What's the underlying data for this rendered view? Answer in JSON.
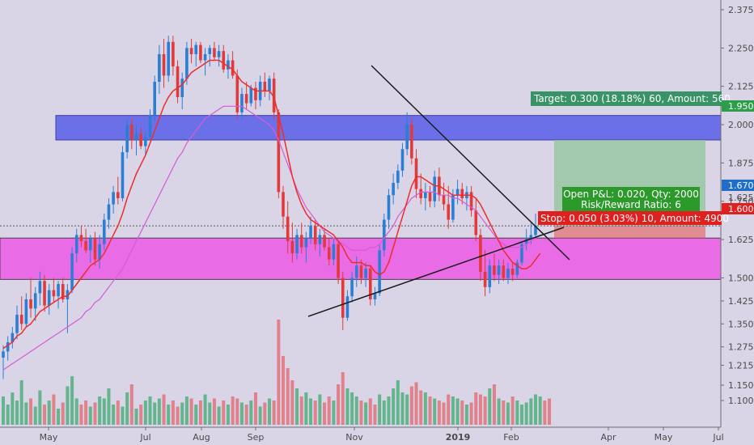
{
  "chart_data": {
    "type": "candlestick",
    "title": "",
    "y_axis_ticks": [
      "2.375",
      "2.250",
      "2.125",
      "2.000",
      "1.875",
      "1.750",
      "1.625",
      "1.500",
      "1.425",
      "1.350",
      "1.275",
      "1.215",
      "1.150",
      "1.100"
    ],
    "x_axis_labels": [
      "May",
      "Jul",
      "Aug",
      "Sep",
      "Nov",
      "2019",
      "Feb",
      "Apr",
      "May",
      "Jul"
    ],
    "last_price": "1.670",
    "target_price": "1.950",
    "stop_price": "1.600",
    "candles": [
      {
        "o": 1.24,
        "h": 1.28,
        "l": 1.17,
        "c": 1.26
      },
      {
        "o": 1.26,
        "h": 1.31,
        "l": 1.23,
        "c": 1.29
      },
      {
        "o": 1.29,
        "h": 1.34,
        "l": 1.27,
        "c": 1.32
      },
      {
        "o": 1.32,
        "h": 1.41,
        "l": 1.3,
        "c": 1.38
      },
      {
        "o": 1.38,
        "h": 1.44,
        "l": 1.33,
        "c": 1.35
      },
      {
        "o": 1.35,
        "h": 1.45,
        "l": 1.34,
        "c": 1.43
      },
      {
        "o": 1.43,
        "h": 1.5,
        "l": 1.37,
        "c": 1.4
      },
      {
        "o": 1.4,
        "h": 1.47,
        "l": 1.36,
        "c": 1.45
      },
      {
        "o": 1.45,
        "h": 1.52,
        "l": 1.41,
        "c": 1.49
      },
      {
        "o": 1.49,
        "h": 1.51,
        "l": 1.39,
        "c": 1.41
      },
      {
        "o": 1.41,
        "h": 1.48,
        "l": 1.38,
        "c": 1.46
      },
      {
        "o": 1.46,
        "h": 1.5,
        "l": 1.42,
        "c": 1.44
      },
      {
        "o": 1.44,
        "h": 1.49,
        "l": 1.4,
        "c": 1.48
      },
      {
        "o": 1.48,
        "h": 1.5,
        "l": 1.42,
        "c": 1.43
      },
      {
        "o": 1.43,
        "h": 1.48,
        "l": 1.32,
        "c": 1.46
      },
      {
        "o": 1.46,
        "h": 1.6,
        "l": 1.45,
        "c": 1.58
      },
      {
        "o": 1.58,
        "h": 1.66,
        "l": 1.55,
        "c": 1.64
      },
      {
        "o": 1.64,
        "h": 1.67,
        "l": 1.6,
        "c": 1.62
      },
      {
        "o": 1.62,
        "h": 1.66,
        "l": 1.58,
        "c": 1.59
      },
      {
        "o": 1.59,
        "h": 1.64,
        "l": 1.55,
        "c": 1.63
      },
      {
        "o": 1.63,
        "h": 1.65,
        "l": 1.54,
        "c": 1.56
      },
      {
        "o": 1.56,
        "h": 1.64,
        "l": 1.53,
        "c": 1.61
      },
      {
        "o": 1.61,
        "h": 1.71,
        "l": 1.59,
        "c": 1.69
      },
      {
        "o": 1.69,
        "h": 1.76,
        "l": 1.66,
        "c": 1.74
      },
      {
        "o": 1.74,
        "h": 1.8,
        "l": 1.71,
        "c": 1.78
      },
      {
        "o": 1.78,
        "h": 1.83,
        "l": 1.74,
        "c": 1.76
      },
      {
        "o": 1.76,
        "h": 1.93,
        "l": 1.75,
        "c": 1.91
      },
      {
        "o": 1.91,
        "h": 2.02,
        "l": 1.89,
        "c": 2.0
      },
      {
        "o": 2.0,
        "h": 2.02,
        "l": 1.92,
        "c": 1.95
      },
      {
        "o": 1.95,
        "h": 2.0,
        "l": 1.9,
        "c": 1.97
      },
      {
        "o": 1.97,
        "h": 1.99,
        "l": 1.92,
        "c": 1.93
      },
      {
        "o": 1.93,
        "h": 1.98,
        "l": 1.9,
        "c": 1.96
      },
      {
        "o": 1.96,
        "h": 2.05,
        "l": 1.95,
        "c": 2.03
      },
      {
        "o": 2.03,
        "h": 2.16,
        "l": 2.01,
        "c": 2.14
      },
      {
        "o": 2.14,
        "h": 2.26,
        "l": 2.1,
        "c": 2.23
      },
      {
        "o": 2.23,
        "h": 2.28,
        "l": 2.12,
        "c": 2.16
      },
      {
        "o": 2.16,
        "h": 2.29,
        "l": 2.14,
        "c": 2.27
      },
      {
        "o": 2.27,
        "h": 2.29,
        "l": 2.16,
        "c": 2.19
      },
      {
        "o": 2.19,
        "h": 2.21,
        "l": 2.07,
        "c": 2.09
      },
      {
        "o": 2.09,
        "h": 2.17,
        "l": 2.05,
        "c": 2.15
      },
      {
        "o": 2.15,
        "h": 2.27,
        "l": 2.13,
        "c": 2.25
      },
      {
        "o": 2.25,
        "h": 2.28,
        "l": 2.2,
        "c": 2.23
      },
      {
        "o": 2.23,
        "h": 2.27,
        "l": 2.19,
        "c": 2.26
      },
      {
        "o": 2.26,
        "h": 2.27,
        "l": 2.2,
        "c": 2.21
      },
      {
        "o": 2.21,
        "h": 2.25,
        "l": 2.16,
        "c": 2.23
      },
      {
        "o": 2.23,
        "h": 2.26,
        "l": 2.19,
        "c": 2.25
      },
      {
        "o": 2.25,
        "h": 2.27,
        "l": 2.21,
        "c": 2.22
      },
      {
        "o": 2.22,
        "h": 2.26,
        "l": 2.19,
        "c": 2.24
      },
      {
        "o": 2.24,
        "h": 2.26,
        "l": 2.17,
        "c": 2.18
      },
      {
        "o": 2.18,
        "h": 2.23,
        "l": 2.15,
        "c": 2.21
      },
      {
        "o": 2.21,
        "h": 2.24,
        "l": 2.15,
        "c": 2.16
      },
      {
        "o": 2.16,
        "h": 2.18,
        "l": 2.02,
        "c": 2.04
      },
      {
        "o": 2.04,
        "h": 2.12,
        "l": 2.02,
        "c": 2.1
      },
      {
        "o": 2.1,
        "h": 2.14,
        "l": 2.05,
        "c": 2.07
      },
      {
        "o": 2.07,
        "h": 2.13,
        "l": 2.06,
        "c": 2.12
      },
      {
        "o": 2.12,
        "h": 2.14,
        "l": 2.05,
        "c": 2.08
      },
      {
        "o": 2.08,
        "h": 2.16,
        "l": 2.06,
        "c": 2.14
      },
      {
        "o": 2.14,
        "h": 2.17,
        "l": 2.09,
        "c": 2.11
      },
      {
        "o": 2.11,
        "h": 2.16,
        "l": 2.08,
        "c": 2.15
      },
      {
        "o": 2.15,
        "h": 2.17,
        "l": 2.02,
        "c": 2.04
      },
      {
        "o": 2.04,
        "h": 2.05,
        "l": 1.76,
        "c": 1.78
      },
      {
        "o": 1.78,
        "h": 1.8,
        "l": 1.66,
        "c": 1.7
      },
      {
        "o": 1.7,
        "h": 1.75,
        "l": 1.58,
        "c": 1.62
      },
      {
        "o": 1.62,
        "h": 1.68,
        "l": 1.55,
        "c": 1.58
      },
      {
        "o": 1.58,
        "h": 1.66,
        "l": 1.56,
        "c": 1.64
      },
      {
        "o": 1.64,
        "h": 1.68,
        "l": 1.58,
        "c": 1.6
      },
      {
        "o": 1.6,
        "h": 1.65,
        "l": 1.55,
        "c": 1.63
      },
      {
        "o": 1.63,
        "h": 1.7,
        "l": 1.61,
        "c": 1.67
      },
      {
        "o": 1.67,
        "h": 1.69,
        "l": 1.59,
        "c": 1.61
      },
      {
        "o": 1.61,
        "h": 1.66,
        "l": 1.57,
        "c": 1.64
      },
      {
        "o": 1.64,
        "h": 1.66,
        "l": 1.59,
        "c": 1.6
      },
      {
        "o": 1.6,
        "h": 1.63,
        "l": 1.54,
        "c": 1.56
      },
      {
        "o": 1.56,
        "h": 1.63,
        "l": 1.54,
        "c": 1.61
      },
      {
        "o": 1.61,
        "h": 1.62,
        "l": 1.48,
        "c": 1.5
      },
      {
        "o": 1.5,
        "h": 1.52,
        "l": 1.33,
        "c": 1.37
      },
      {
        "o": 1.37,
        "h": 1.46,
        "l": 1.36,
        "c": 1.44
      },
      {
        "o": 1.44,
        "h": 1.52,
        "l": 1.42,
        "c": 1.5
      },
      {
        "o": 1.5,
        "h": 1.57,
        "l": 1.47,
        "c": 1.54
      },
      {
        "o": 1.54,
        "h": 1.56,
        "l": 1.48,
        "c": 1.5
      },
      {
        "o": 1.5,
        "h": 1.55,
        "l": 1.47,
        "c": 1.53
      },
      {
        "o": 1.53,
        "h": 1.54,
        "l": 1.41,
        "c": 1.43
      },
      {
        "o": 1.43,
        "h": 1.47,
        "l": 1.41,
        "c": 1.45
      },
      {
        "o": 1.45,
        "h": 1.61,
        "l": 1.44,
        "c": 1.59
      },
      {
        "o": 1.59,
        "h": 1.71,
        "l": 1.57,
        "c": 1.69
      },
      {
        "o": 1.69,
        "h": 1.79,
        "l": 1.66,
        "c": 1.77
      },
      {
        "o": 1.77,
        "h": 1.84,
        "l": 1.74,
        "c": 1.81
      },
      {
        "o": 1.81,
        "h": 1.87,
        "l": 1.79,
        "c": 1.85
      },
      {
        "o": 1.85,
        "h": 1.94,
        "l": 1.83,
        "c": 1.92
      },
      {
        "o": 1.92,
        "h": 2.04,
        "l": 1.9,
        "c": 2.0
      },
      {
        "o": 2.0,
        "h": 2.02,
        "l": 1.87,
        "c": 1.89
      },
      {
        "o": 1.89,
        "h": 1.92,
        "l": 1.76,
        "c": 1.79
      },
      {
        "o": 1.79,
        "h": 1.84,
        "l": 1.74,
        "c": 1.76
      },
      {
        "o": 1.76,
        "h": 1.81,
        "l": 1.72,
        "c": 1.78
      },
      {
        "o": 1.78,
        "h": 1.8,
        "l": 1.73,
        "c": 1.75
      },
      {
        "o": 1.75,
        "h": 1.85,
        "l": 1.73,
        "c": 1.83
      },
      {
        "o": 1.83,
        "h": 1.86,
        "l": 1.75,
        "c": 1.77
      },
      {
        "o": 1.77,
        "h": 1.81,
        "l": 1.72,
        "c": 1.74
      },
      {
        "o": 1.74,
        "h": 1.8,
        "l": 1.66,
        "c": 1.69
      },
      {
        "o": 1.69,
        "h": 1.79,
        "l": 1.68,
        "c": 1.77
      },
      {
        "o": 1.77,
        "h": 1.82,
        "l": 1.74,
        "c": 1.79
      },
      {
        "o": 1.79,
        "h": 1.81,
        "l": 1.74,
        "c": 1.76
      },
      {
        "o": 1.76,
        "h": 1.8,
        "l": 1.72,
        "c": 1.78
      },
      {
        "o": 1.78,
        "h": 1.8,
        "l": 1.7,
        "c": 1.72
      },
      {
        "o": 1.72,
        "h": 1.76,
        "l": 1.62,
        "c": 1.64
      },
      {
        "o": 1.64,
        "h": 1.66,
        "l": 1.49,
        "c": 1.52
      },
      {
        "o": 1.52,
        "h": 1.59,
        "l": 1.44,
        "c": 1.47
      },
      {
        "o": 1.47,
        "h": 1.56,
        "l": 1.45,
        "c": 1.54
      },
      {
        "o": 1.54,
        "h": 1.58,
        "l": 1.49,
        "c": 1.51
      },
      {
        "o": 1.51,
        "h": 1.56,
        "l": 1.48,
        "c": 1.54
      },
      {
        "o": 1.54,
        "h": 1.56,
        "l": 1.49,
        "c": 1.5
      },
      {
        "o": 1.5,
        "h": 1.55,
        "l": 1.48,
        "c": 1.53
      },
      {
        "o": 1.53,
        "h": 1.55,
        "l": 1.49,
        "c": 1.51
      },
      {
        "o": 1.51,
        "h": 1.56,
        "l": 1.5,
        "c": 1.55
      },
      {
        "o": 1.55,
        "h": 1.62,
        "l": 1.54,
        "c": 1.61
      },
      {
        "o": 1.61,
        "h": 1.66,
        "l": 1.59,
        "c": 1.63
      },
      {
        "o": 1.63,
        "h": 1.68,
        "l": 1.61,
        "c": 1.64
      },
      {
        "o": 1.64,
        "h": 1.71,
        "l": 1.63,
        "c": 1.67
      }
    ],
    "ma_red": [
      1.27,
      1.28,
      1.29,
      1.31,
      1.32,
      1.34,
      1.35,
      1.37,
      1.39,
      1.4,
      1.41,
      1.42,
      1.43,
      1.44,
      1.44,
      1.46,
      1.48,
      1.5,
      1.52,
      1.54,
      1.55,
      1.56,
      1.58,
      1.61,
      1.64,
      1.67,
      1.71,
      1.76,
      1.8,
      1.84,
      1.87,
      1.9,
      1.94,
      1.98,
      2.02,
      2.06,
      2.09,
      2.11,
      2.12,
      2.13,
      2.15,
      2.17,
      2.18,
      2.19,
      2.2,
      2.21,
      2.21,
      2.21,
      2.2,
      2.19,
      2.18,
      2.16,
      2.14,
      2.13,
      2.12,
      2.11,
      2.11,
      2.11,
      2.11,
      2.09,
      2.03,
      1.97,
      1.9,
      1.83,
      1.78,
      1.74,
      1.71,
      1.69,
      1.68,
      1.67,
      1.66,
      1.65,
      1.64,
      1.62,
      1.6,
      1.57,
      1.55,
      1.55,
      1.55,
      1.54,
      1.54,
      1.52,
      1.51,
      1.52,
      1.55,
      1.6,
      1.65,
      1.7,
      1.75,
      1.8,
      1.83,
      1.83,
      1.82,
      1.81,
      1.8,
      1.8,
      1.79,
      1.78,
      1.77,
      1.77,
      1.77,
      1.77,
      1.77,
      1.76,
      1.74,
      1.71,
      1.68,
      1.65,
      1.62,
      1.59,
      1.57,
      1.55,
      1.54,
      1.53,
      1.53,
      1.54,
      1.56,
      1.58
    ],
    "ma_pink": [
      1.2,
      1.21,
      1.22,
      1.23,
      1.24,
      1.25,
      1.26,
      1.27,
      1.28,
      1.29,
      1.3,
      1.31,
      1.32,
      1.33,
      1.34,
      1.35,
      1.36,
      1.37,
      1.39,
      1.4,
      1.42,
      1.43,
      1.45,
      1.47,
      1.49,
      1.51,
      1.53,
      1.56,
      1.59,
      1.62,
      1.65,
      1.68,
      1.71,
      1.74,
      1.77,
      1.8,
      1.83,
      1.86,
      1.89,
      1.91,
      1.94,
      1.96,
      1.98,
      2.0,
      2.02,
      2.03,
      2.04,
      2.05,
      2.06,
      2.06,
      2.06,
      2.06,
      2.06,
      2.05,
      2.04,
      2.03,
      2.02,
      2.01,
      2.0,
      1.98,
      1.95,
      1.91,
      1.87,
      1.83,
      1.79,
      1.76,
      1.73,
      1.71,
      1.69,
      1.67,
      1.65,
      1.64,
      1.63,
      1.62,
      1.61,
      1.6,
      1.59,
      1.59,
      1.59,
      1.59,
      1.6,
      1.6,
      1.61,
      1.63,
      1.65,
      1.67,
      1.7,
      1.72,
      1.74,
      1.76,
      1.77,
      1.78,
      1.78,
      1.78,
      1.78,
      1.77,
      1.77,
      1.77,
      1.76,
      1.76,
      1.75,
      1.74,
      1.73,
      1.72,
      1.7,
      1.68,
      1.66,
      1.64,
      1.62,
      1.61,
      1.6,
      1.6,
      1.6,
      1.6,
      1.61,
      1.62,
      1.63,
      1.64
    ],
    "volume": [
      14,
      10,
      16,
      12,
      22,
      11,
      13,
      9,
      17,
      10,
      12,
      15,
      8,
      11,
      19,
      24,
      13,
      10,
      12,
      9,
      11,
      14,
      13,
      18,
      10,
      12,
      9,
      16,
      20,
      8,
      10,
      12,
      14,
      11,
      13,
      15,
      10,
      12,
      9,
      11,
      14,
      13,
      10,
      12,
      15,
      11,
      13,
      9,
      12,
      10,
      14,
      13,
      11,
      10,
      12,
      16,
      9,
      11,
      13,
      12,
      52,
      34,
      28,
      22,
      18,
      14,
      16,
      13,
      12,
      15,
      11,
      14,
      12,
      20,
      26,
      18,
      16,
      14,
      12,
      11,
      13,
      10,
      15,
      12,
      14,
      18,
      22,
      16,
      15,
      19,
      21,
      17,
      16,
      14,
      13,
      12,
      11,
      15,
      14,
      13,
      12,
      10,
      11,
      16,
      15,
      14,
      18,
      20,
      13,
      12,
      11,
      14,
      12,
      10,
      11,
      13,
      15,
      14,
      12,
      13
    ],
    "volume_up": [
      true,
      true,
      true,
      true,
      true,
      true,
      false,
      true,
      true,
      false,
      true,
      false,
      true,
      false,
      true,
      true,
      true,
      false,
      false,
      true,
      false,
      true,
      true,
      true,
      true,
      false,
      true,
      true,
      false,
      true,
      false,
      true,
      true,
      true,
      true,
      false,
      true,
      false,
      false,
      true,
      true,
      false,
      true,
      false,
      true,
      true,
      false,
      true,
      false,
      true,
      false,
      false,
      true,
      false,
      true,
      false,
      true,
      false,
      true,
      false,
      false,
      false,
      false,
      false,
      true,
      false,
      true,
      true,
      false,
      true,
      false,
      false,
      true,
      false,
      false,
      true,
      true,
      true,
      false,
      true,
      false,
      false,
      true,
      true,
      true,
      true,
      true,
      true,
      true,
      false,
      false,
      false,
      true,
      false,
      true,
      false,
      false,
      false,
      true,
      true,
      false,
      true,
      false,
      false,
      false,
      false,
      true,
      false,
      true,
      false,
      true,
      false,
      true,
      true,
      true,
      true,
      true,
      true
    ]
  },
  "annotations": {
    "target_label": "Target: 0.300 (18.18%) 60, Amount: 560",
    "pnl_line1": "Open P&L: 0.020, Qty: 2000",
    "pnl_line2": "Risk/Reward Ratio: 6",
    "stop_label": "Stop: 0.050 (3.03%) 10, Amount: 4900",
    "hidden_tick": "1.625"
  },
  "colors": {
    "up": "#2a7fd4",
    "down": "#e03a3a",
    "ma_red": "#ee2c2c",
    "ma_pink": "#d85ad6",
    "resistance_zone": "#6b70e8",
    "support_zone": "#ea6be6",
    "target_zone": "#8fc49a",
    "price_badge": "#1f6ec9",
    "target_badge": "#2e9d4a",
    "stop_badge": "#e01f1f"
  }
}
